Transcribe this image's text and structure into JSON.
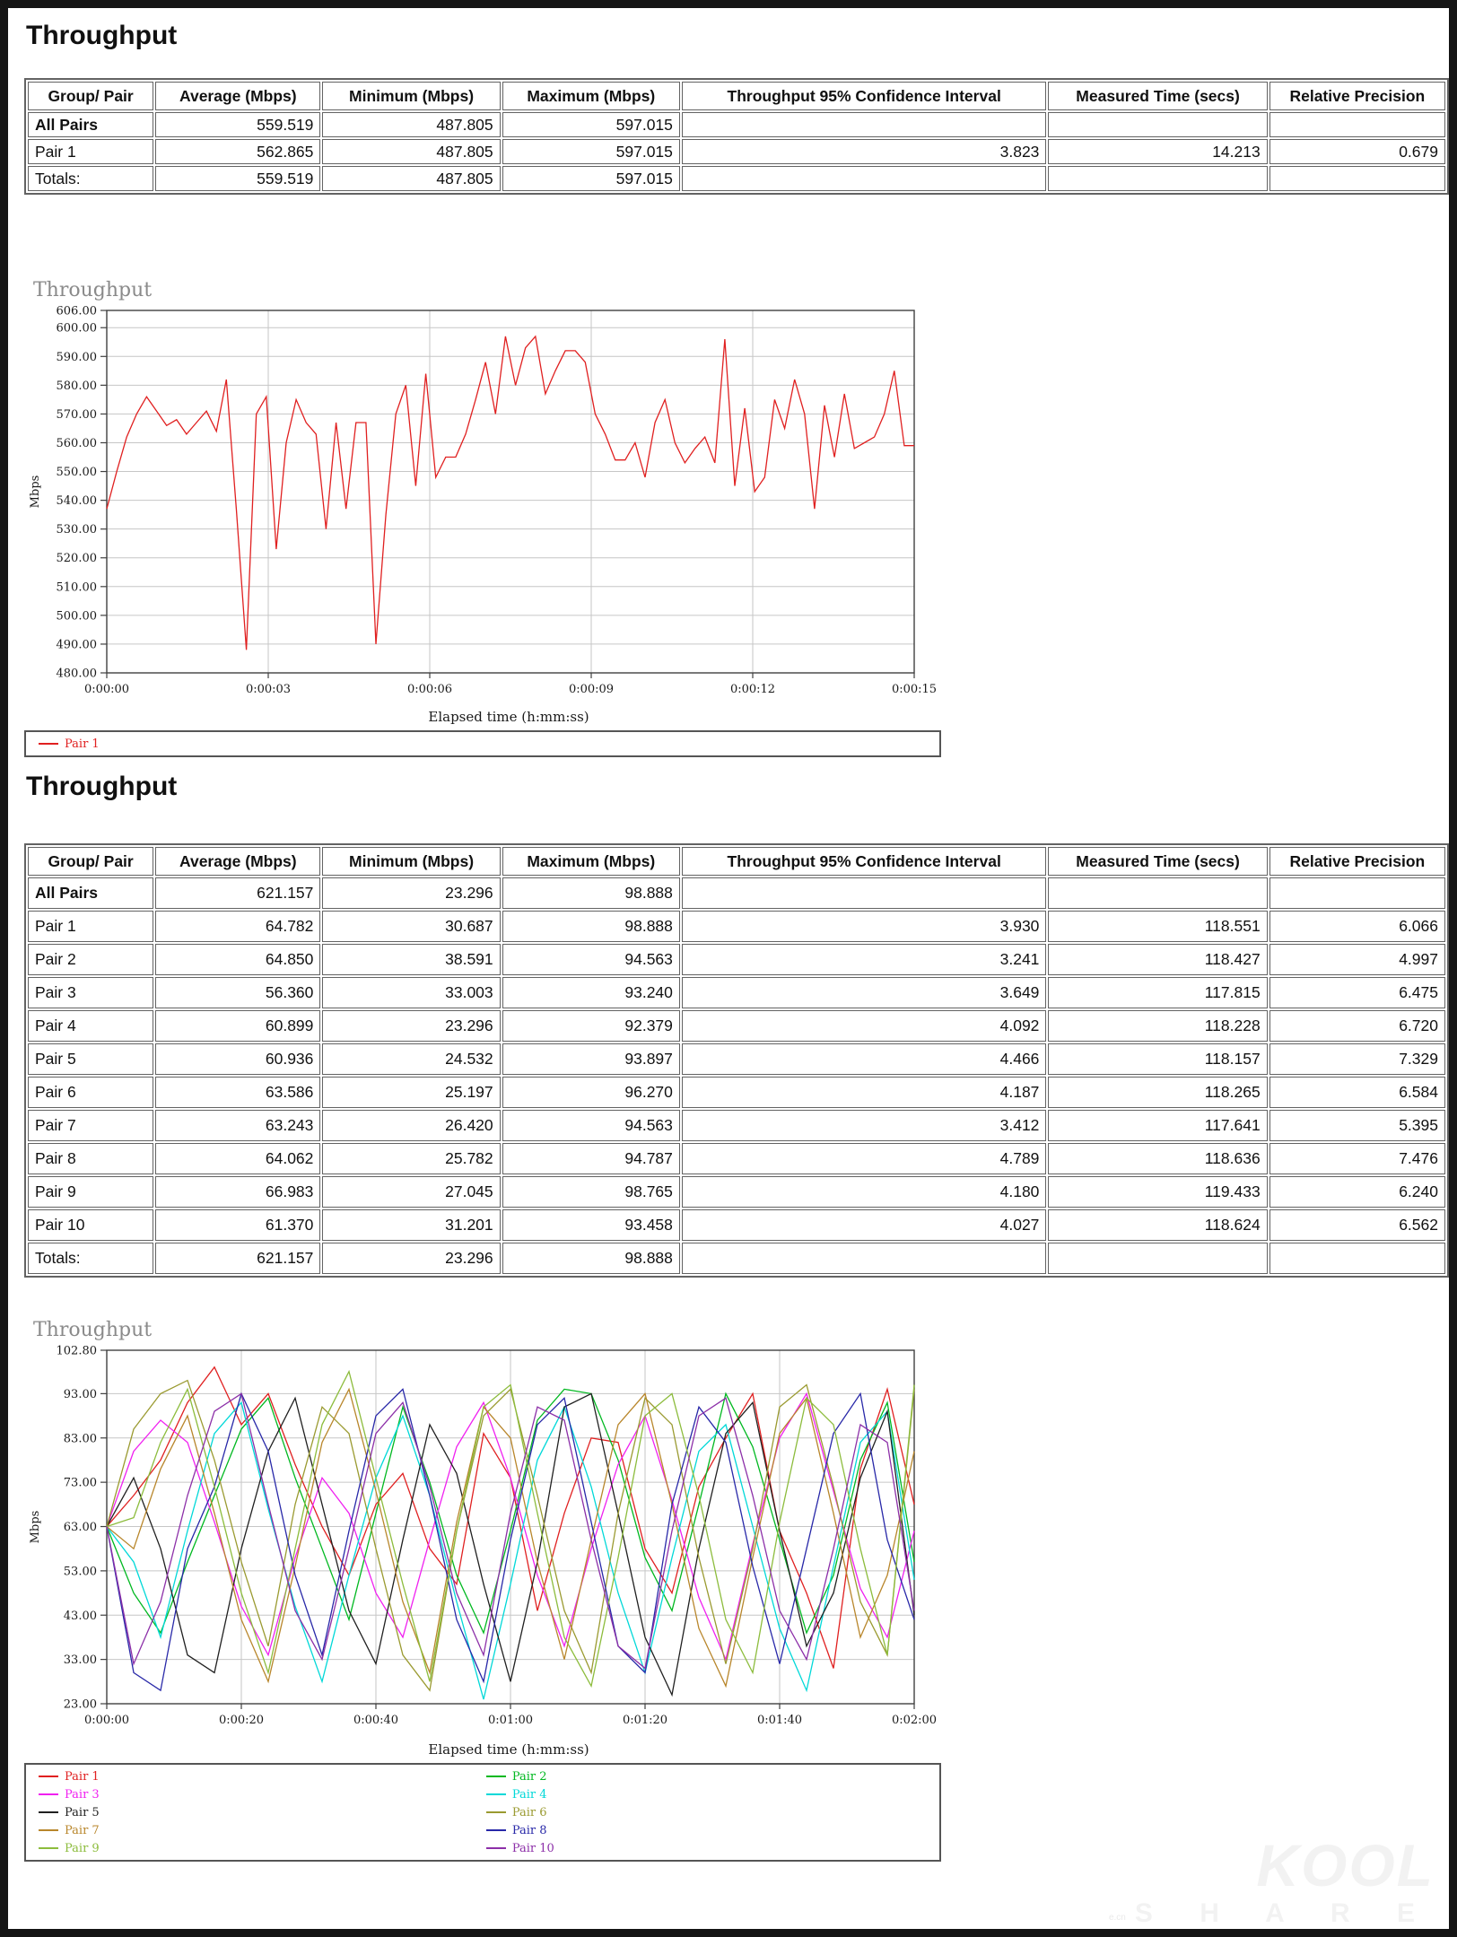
{
  "page": {
    "title_headings": [
      "Throughput",
      "Throughput"
    ]
  },
  "table_headers": [
    "Group/ Pair",
    "Average (Mbps)",
    "Minimum (Mbps)",
    "Maximum (Mbps)",
    "Throughput 95% Confidence Interval",
    "Measured Time (secs)",
    "Relative Precision"
  ],
  "tables": [
    {
      "rows": [
        {
          "label": "All Pairs",
          "bold": true,
          "values": [
            "559.519",
            "487.805",
            "597.015",
            "",
            "",
            ""
          ]
        },
        {
          "label": "Pair 1",
          "bold": false,
          "values": [
            "562.865",
            "487.805",
            "597.015",
            "3.823",
            "14.213",
            "0.679"
          ]
        },
        {
          "label": "Totals:",
          "bold": false,
          "values": [
            "559.519",
            "487.805",
            "597.015",
            "",
            "",
            ""
          ]
        }
      ]
    },
    {
      "rows": [
        {
          "label": "All Pairs",
          "bold": true,
          "values": [
            "621.157",
            "23.296",
            "98.888",
            "",
            "",
            ""
          ]
        },
        {
          "label": "Pair 1",
          "bold": false,
          "values": [
            "64.782",
            "30.687",
            "98.888",
            "3.930",
            "118.551",
            "6.066"
          ]
        },
        {
          "label": "Pair 2",
          "bold": false,
          "values": [
            "64.850",
            "38.591",
            "94.563",
            "3.241",
            "118.427",
            "4.997"
          ]
        },
        {
          "label": "Pair 3",
          "bold": false,
          "values": [
            "56.360",
            "33.003",
            "93.240",
            "3.649",
            "117.815",
            "6.475"
          ]
        },
        {
          "label": "Pair 4",
          "bold": false,
          "values": [
            "60.899",
            "23.296",
            "92.379",
            "4.092",
            "118.228",
            "6.720"
          ]
        },
        {
          "label": "Pair 5",
          "bold": false,
          "values": [
            "60.936",
            "24.532",
            "93.897",
            "4.466",
            "118.157",
            "7.329"
          ]
        },
        {
          "label": "Pair 6",
          "bold": false,
          "values": [
            "63.586",
            "25.197",
            "96.270",
            "4.187",
            "118.265",
            "6.584"
          ]
        },
        {
          "label": "Pair 7",
          "bold": false,
          "values": [
            "63.243",
            "26.420",
            "94.563",
            "3.412",
            "117.641",
            "5.395"
          ]
        },
        {
          "label": "Pair 8",
          "bold": false,
          "values": [
            "64.062",
            "25.782",
            "94.787",
            "4.789",
            "118.636",
            "7.476"
          ]
        },
        {
          "label": "Pair 9",
          "bold": false,
          "values": [
            "66.983",
            "27.045",
            "98.765",
            "4.180",
            "119.433",
            "6.240"
          ]
        },
        {
          "label": "Pair 10",
          "bold": false,
          "values": [
            "61.370",
            "31.201",
            "93.458",
            "4.027",
            "118.624",
            "6.562"
          ]
        },
        {
          "label": "Totals:",
          "bold": false,
          "values": [
            "621.157",
            "23.296",
            "98.888",
            "",
            "",
            ""
          ]
        }
      ]
    }
  ],
  "chart_data": [
    {
      "type": "line",
      "title": "Throughput",
      "ylabel": "Mbps",
      "xlabel": "Elapsed time (h:mm:ss)",
      "x_max": 15,
      "y_min": 480,
      "y_max": 606,
      "grid": true,
      "legend_position": "bottom",
      "y_ticks": [
        {
          "label": "606.00",
          "v": 606
        },
        {
          "label": "600.00",
          "v": 600
        },
        {
          "label": "590.00",
          "v": 590
        },
        {
          "label": "580.00",
          "v": 580
        },
        {
          "label": "570.00",
          "v": 570
        },
        {
          "label": "560.00",
          "v": 560
        },
        {
          "label": "550.00",
          "v": 550
        },
        {
          "label": "540.00",
          "v": 540
        },
        {
          "label": "530.00",
          "v": 530
        },
        {
          "label": "520.00",
          "v": 520
        },
        {
          "label": "510.00",
          "v": 510
        },
        {
          "label": "500.00",
          "v": 500
        },
        {
          "label": "490.00",
          "v": 490
        },
        {
          "label": "480.00",
          "v": 480
        }
      ],
      "x_ticks": [
        {
          "label": "0:00:00",
          "v": 0
        },
        {
          "label": "0:00:03",
          "v": 3
        },
        {
          "label": "0:00:06",
          "v": 6
        },
        {
          "label": "0:00:09",
          "v": 9
        },
        {
          "label": "0:00:12",
          "v": 12
        },
        {
          "label": "0:00:15",
          "v": 15
        }
      ],
      "series": [
        {
          "name": "Pair 1",
          "color": "#e02020",
          "values": [
            537,
            550,
            562,
            570,
            576,
            571,
            566,
            568,
            563,
            567,
            571,
            564,
            582,
            537,
            488,
            570,
            576,
            523,
            560,
            575,
            567,
            563,
            530,
            567,
            537,
            567,
            567,
            490,
            535,
            570,
            580,
            545,
            584,
            548,
            555,
            555,
            563,
            575,
            588,
            570,
            597,
            580,
            593,
            597,
            577,
            585,
            592,
            592,
            588,
            570,
            563,
            554,
            554,
            560,
            548,
            567,
            575,
            560,
            553,
            558,
            562,
            553,
            596,
            545,
            572,
            543,
            548,
            575,
            565,
            582,
            570,
            537,
            573,
            555,
            577,
            558,
            560,
            562,
            570,
            585,
            559,
            559
          ]
        }
      ],
      "legend_columns": [
        [
          "Pair 1"
        ]
      ]
    },
    {
      "type": "line",
      "title": "Throughput",
      "ylabel": "Mbps",
      "xlabel": "Elapsed time (h:mm:ss)",
      "x_max": 120,
      "y_min": 23,
      "y_max": 102.8,
      "grid": true,
      "legend_position": "bottom",
      "y_ticks": [
        {
          "label": "102.80",
          "v": 102.8
        },
        {
          "label": "93.00",
          "v": 93
        },
        {
          "label": "83.00",
          "v": 83
        },
        {
          "label": "73.00",
          "v": 73
        },
        {
          "label": "63.00",
          "v": 63
        },
        {
          "label": "53.00",
          "v": 53
        },
        {
          "label": "43.00",
          "v": 43
        },
        {
          "label": "33.00",
          "v": 33
        },
        {
          "label": "23.00",
          "v": 23
        }
      ],
      "x_ticks": [
        {
          "label": "0:00:00",
          "v": 0
        },
        {
          "label": "0:00:20",
          "v": 20
        },
        {
          "label": "0:00:40",
          "v": 40
        },
        {
          "label": "0:01:00",
          "v": 60
        },
        {
          "label": "0:01:20",
          "v": 80
        },
        {
          "label": "0:01:40",
          "v": 100
        },
        {
          "label": "0:02:00",
          "v": 120
        }
      ],
      "series": [
        {
          "name": "Pair 1",
          "color": "#e02020",
          "values": [
            63,
            70,
            78,
            91,
            99,
            86,
            93,
            77,
            63,
            52,
            68,
            75,
            58,
            50,
            84,
            74,
            44,
            66,
            83,
            82,
            58,
            48,
            72,
            83,
            93,
            62,
            48,
            31,
            76,
            94,
            68
          ]
        },
        {
          "name": "Pair 2",
          "color": "#00b820",
          "values": [
            63,
            48,
            39,
            55,
            70,
            85,
            92,
            74,
            58,
            42,
            66,
            90,
            73,
            52,
            39,
            62,
            87,
            94,
            93,
            78,
            56,
            44,
            68,
            93,
            81,
            60,
            39,
            52,
            78,
            91,
            55
          ]
        },
        {
          "name": "Pair 3",
          "color": "#f020f0",
          "values": [
            63,
            80,
            87,
            82,
            64,
            45,
            34,
            56,
            74,
            66,
            48,
            38,
            60,
            81,
            91,
            74,
            52,
            36,
            58,
            77,
            88,
            69,
            47,
            33,
            59,
            83,
            93,
            71,
            49,
            38,
            62
          ]
        },
        {
          "name": "Pair 4",
          "color": "#00d8d8",
          "values": [
            63,
            55,
            38,
            62,
            84,
            91,
            67,
            45,
            28,
            52,
            74,
            88,
            70,
            46,
            24,
            50,
            78,
            90,
            72,
            48,
            30,
            56,
            80,
            86,
            63,
            40,
            26,
            54,
            82,
            89,
            51
          ]
        },
        {
          "name": "Pair 5",
          "color": "#202020",
          "values": [
            63,
            74,
            58,
            34,
            30,
            58,
            80,
            92,
            68,
            44,
            32,
            60,
            86,
            75,
            50,
            28,
            55,
            90,
            93,
            66,
            38,
            25,
            58,
            84,
            91,
            62,
            36,
            48,
            74,
            89,
            43
          ]
        },
        {
          "name": "Pair 6",
          "color": "#9a9a30",
          "values": [
            63,
            85,
            93,
            96,
            78,
            55,
            36,
            68,
            90,
            84,
            58,
            34,
            26,
            62,
            88,
            94,
            70,
            44,
            30,
            66,
            92,
            86,
            56,
            32,
            58,
            90,
            95,
            72,
            46,
            34,
            94
          ]
        },
        {
          "name": "Pair 7",
          "color": "#b8862b",
          "values": [
            63,
            58,
            76,
            88,
            66,
            42,
            28,
            54,
            82,
            94,
            71,
            46,
            30,
            64,
            90,
            83,
            55,
            33,
            60,
            86,
            93,
            68,
            40,
            27,
            56,
            84,
            92,
            66,
            38,
            52,
            80
          ]
        },
        {
          "name": "Pair 8",
          "color": "#2828a8",
          "values": [
            63,
            30,
            26,
            58,
            72,
            93,
            80,
            52,
            34,
            62,
            88,
            94,
            70,
            42,
            28,
            60,
            86,
            92,
            64,
            36,
            30,
            68,
            90,
            82,
            54,
            32,
            58,
            84,
            93,
            60,
            42
          ]
        },
        {
          "name": "Pair 9",
          "color": "#8cbc3c",
          "values": [
            63,
            65,
            82,
            94,
            72,
            48,
            30,
            58,
            86,
            98,
            74,
            50,
            28,
            62,
            90,
            95,
            66,
            38,
            27,
            56,
            88,
            93,
            70,
            42,
            30,
            64,
            92,
            86,
            58,
            34,
            95
          ]
        },
        {
          "name": "Pair 10",
          "color": "#8c2fa8",
          "values": [
            63,
            32,
            46,
            70,
            89,
            93,
            68,
            44,
            33,
            58,
            84,
            91,
            72,
            48,
            34,
            66,
            90,
            87,
            60,
            36,
            31,
            62,
            88,
            92,
            70,
            44,
            33,
            58,
            86,
            82,
            44
          ]
        }
      ],
      "legend_columns": [
        [
          "Pair 1",
          "Pair 3",
          "Pair 5",
          "Pair 7",
          "Pair 9"
        ],
        [
          "Pair 2",
          "Pair 4",
          "Pair 6",
          "Pair 8",
          "Pair 10"
        ]
      ]
    }
  ],
  "watermark": {
    "big": "KOOL",
    "spaced": "S H A R E",
    "tiny": "e.cn"
  }
}
